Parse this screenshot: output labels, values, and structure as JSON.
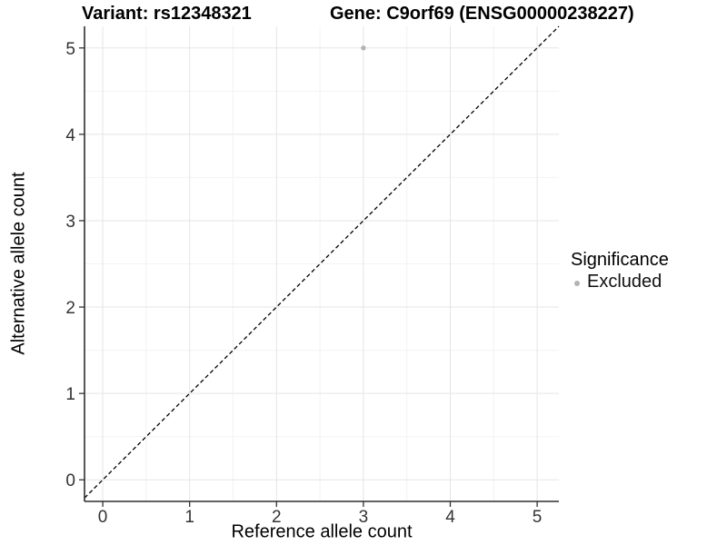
{
  "titles": {
    "variant": "Variant: rs12348321",
    "gene": "Gene: C9orf69 (ENSG00000238227)"
  },
  "legend": {
    "title": "Significance",
    "items": [
      {
        "label": "Excluded",
        "color": "#b3b3b3"
      }
    ]
  },
  "chart_data": {
    "type": "scatter",
    "title": "Variant: rs12348321   Gene: C9orf69 (ENSG00000238227)",
    "xlabel": "Reference allele count",
    "ylabel": "Alternative allele count",
    "xlim": [
      -0.21,
      5.25
    ],
    "ylim": [
      -0.25,
      5.25
    ],
    "xticks": [
      0,
      1,
      2,
      3,
      4,
      5
    ],
    "yticks": [
      0,
      1,
      2,
      3,
      4,
      5
    ],
    "minor_ticks": [
      0.5,
      1.5,
      2.5,
      3.5,
      4.5
    ],
    "grid": true,
    "legend_position": "right",
    "series": [
      {
        "name": "Excluded",
        "color": "#b3b3b3",
        "points": [
          {
            "x": 3,
            "y": 5
          }
        ]
      }
    ],
    "reference_line": {
      "type": "identity",
      "slope": 1,
      "intercept": 0,
      "style": "dashed",
      "color": "#000000"
    },
    "style": {
      "major_grid_color": "#e5e5e5",
      "minor_grid_color": "#f2f2f2",
      "axis_line_color": "#2e2e2e",
      "tick_color": "#333333",
      "tick_label_color": "#333333"
    }
  }
}
